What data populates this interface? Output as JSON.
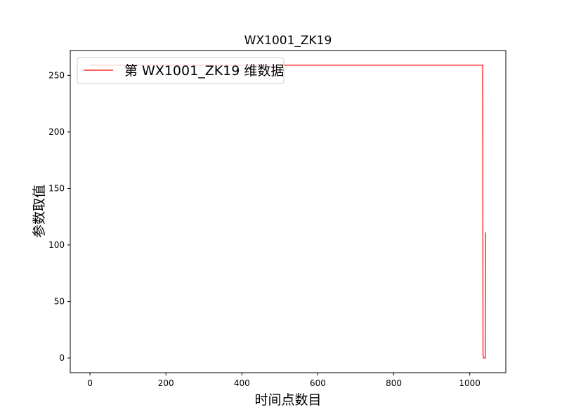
{
  "chart_data": {
    "type": "line",
    "title": "WX1001_ZK19",
    "xlabel": "时间点数目",
    "ylabel": "参数取值",
    "xlim": [
      -52,
      1095
    ],
    "ylim": [
      -13,
      272
    ],
    "xticks": [
      0,
      200,
      400,
      600,
      800,
      1000
    ],
    "yticks": [
      0,
      50,
      100,
      150,
      200,
      250
    ],
    "grid": false,
    "legend_position": "top-left",
    "series": [
      {
        "name": "第 WX1001_ZK19 维数据",
        "color": "#ff0000",
        "x": [
          0,
          1034,
          1035,
          1036,
          1037,
          1038,
          1039,
          1040,
          1041,
          1042
        ],
        "y": [
          259,
          259,
          3,
          0,
          0,
          0,
          0,
          0,
          0,
          111
        ]
      }
    ]
  }
}
